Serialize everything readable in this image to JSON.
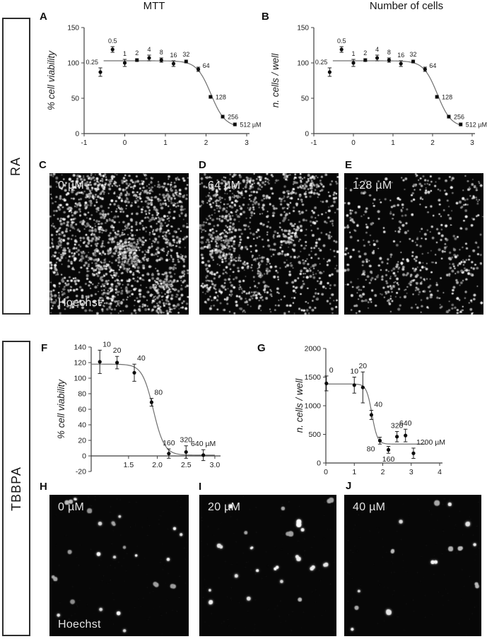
{
  "column_titles": [
    {
      "text": "MTT"
    },
    {
      "text": "Number of cells"
    }
  ],
  "group_labels": [
    {
      "text": "RA"
    },
    {
      "text": "TBBPA"
    }
  ],
  "panel_letters": [
    "A",
    "B",
    "C",
    "D",
    "E",
    "F",
    "G",
    "H",
    "I",
    "J"
  ],
  "colors": {
    "background": "#ffffff",
    "axis": "#3f3f3f",
    "curve": "#6f6f6f",
    "point": "#0d0d0d",
    "text": "#1b1b1b",
    "micro_background": "#070707",
    "micro_label": "#e4e4e4"
  },
  "chart_data": [
    {
      "panel": "A",
      "type": "scatter",
      "column_title": "MTT",
      "xlabel": "",
      "ylabel": "% cell viability",
      "xlim": [
        -1,
        3
      ],
      "ylim": [
        0,
        150
      ],
      "x_axis_at_y": 0,
      "grid": false,
      "xticks": [
        {
          "v": -1,
          "label": "-1"
        },
        {
          "v": 0,
          "label": "0"
        },
        {
          "v": 1,
          "label": "1"
        },
        {
          "v": 2,
          "label": "2"
        },
        {
          "v": 3,
          "label": "3"
        }
      ],
      "yticks": [
        {
          "v": 0,
          "label": "0"
        },
        {
          "v": 50,
          "label": "50"
        },
        {
          "v": 100,
          "label": "100"
        },
        {
          "v": 150,
          "label": "150"
        }
      ],
      "points": [
        {
          "label": "0.25",
          "x": -0.6,
          "y": 87,
          "err": 6,
          "label_pos": "above-left"
        },
        {
          "label": "0.5",
          "x": -0.3,
          "y": 119,
          "err": 4,
          "label_pos": "above"
        },
        {
          "label": "1",
          "x": 0.0,
          "y": 100,
          "err": 5,
          "label_pos": "above"
        },
        {
          "label": "2",
          "x": 0.3,
          "y": 104,
          "err": 2,
          "label_pos": "above"
        },
        {
          "label": "4",
          "x": 0.6,
          "y": 107,
          "err": 4,
          "label_pos": "above"
        },
        {
          "label": "8",
          "x": 0.9,
          "y": 104,
          "err": 3,
          "label_pos": "above"
        },
        {
          "label": "16",
          "x": 1.2,
          "y": 99,
          "err": 4,
          "label_pos": "above"
        },
        {
          "label": "32",
          "x": 1.51,
          "y": 102,
          "err": 2,
          "label_pos": "above"
        },
        {
          "label": "64",
          "x": 1.81,
          "y": 91,
          "err": 3,
          "label_pos": "right-above"
        },
        {
          "label": "128",
          "x": 2.11,
          "y": 52,
          "err": 2,
          "label_pos": "right"
        },
        {
          "label": "256",
          "x": 2.41,
          "y": 24,
          "err": 2,
          "label_pos": "right"
        },
        {
          "label": "512 µM",
          "x": 2.71,
          "y": 13,
          "err": 2,
          "label_pos": "right"
        }
      ],
      "fit": {
        "top": 103,
        "bottom": 9,
        "logec50": 2.12,
        "hill": 2.5,
        "x_start": -0.52,
        "x_end": 2.71
      }
    },
    {
      "panel": "B",
      "type": "scatter",
      "column_title": "Number of cells",
      "xlabel": "",
      "ylabel": "n. cells / well",
      "xlim": [
        -1,
        3
      ],
      "ylim": [
        0,
        150
      ],
      "x_axis_at_y": 0,
      "grid": false,
      "xticks": [
        {
          "v": -1,
          "label": "-1"
        },
        {
          "v": 0,
          "label": "0"
        },
        {
          "v": 1,
          "label": "1"
        },
        {
          "v": 2,
          "label": "2"
        },
        {
          "v": 3,
          "label": "3"
        }
      ],
      "yticks": [
        {
          "v": 0,
          "label": "0"
        },
        {
          "v": 50,
          "label": "50"
        },
        {
          "v": 100,
          "label": "100"
        },
        {
          "v": 150,
          "label": "150"
        }
      ],
      "points": [
        {
          "label": "0.25",
          "x": -0.6,
          "y": 87,
          "err": 6,
          "label_pos": "above-left"
        },
        {
          "label": "0.5",
          "x": -0.3,
          "y": 119,
          "err": 4,
          "label_pos": "above"
        },
        {
          "label": "1",
          "x": 0.0,
          "y": 100,
          "err": 5,
          "label_pos": "above"
        },
        {
          "label": "2",
          "x": 0.3,
          "y": 104,
          "err": 2,
          "label_pos": "above"
        },
        {
          "label": "4",
          "x": 0.6,
          "y": 107,
          "err": 4,
          "label_pos": "above"
        },
        {
          "label": "8",
          "x": 0.9,
          "y": 104,
          "err": 3,
          "label_pos": "above"
        },
        {
          "label": "16",
          "x": 1.2,
          "y": 99,
          "err": 4,
          "label_pos": "above"
        },
        {
          "label": "32",
          "x": 1.51,
          "y": 102,
          "err": 2,
          "label_pos": "above"
        },
        {
          "label": "64",
          "x": 1.81,
          "y": 91,
          "err": 3,
          "label_pos": "right-above"
        },
        {
          "label": "128",
          "x": 2.11,
          "y": 52,
          "err": 2,
          "label_pos": "right"
        },
        {
          "label": "256",
          "x": 2.41,
          "y": 24,
          "err": 2,
          "label_pos": "right"
        },
        {
          "label": "512 µM",
          "x": 2.71,
          "y": 13,
          "err": 2,
          "label_pos": "right"
        }
      ],
      "fit": {
        "top": 103,
        "bottom": 9,
        "logec50": 2.12,
        "hill": 2.5,
        "x_start": -0.52,
        "x_end": 2.71
      }
    },
    {
      "panel": "F",
      "type": "scatter",
      "xlabel": "",
      "ylabel": "% cell viability",
      "xlim": [
        0.85,
        3.05
      ],
      "ylim": [
        -20,
        140
      ],
      "x_axis_at_y": 0,
      "grid": false,
      "xticks": [
        {
          "v": 1.5,
          "label": "1.5"
        },
        {
          "v": 2.0,
          "label": "2.0"
        },
        {
          "v": 2.5,
          "label": "2.5"
        },
        {
          "v": 3.0,
          "label": "3.0"
        }
      ],
      "yticks": [
        {
          "v": -20,
          "label": "-20"
        },
        {
          "v": 0,
          "label": "0"
        },
        {
          "v": 20,
          "label": "20"
        },
        {
          "v": 40,
          "label": "40"
        },
        {
          "v": 60,
          "label": "60"
        },
        {
          "v": 80,
          "label": "80"
        },
        {
          "v": 100,
          "label": "100"
        },
        {
          "v": 120,
          "label": "120"
        },
        {
          "v": 140,
          "label": "140"
        }
      ],
      "points": [
        {
          "label": "10",
          "x": 1.0,
          "y": 121,
          "err": 15,
          "label_pos": "above-right"
        },
        {
          "label": "20",
          "x": 1.3,
          "y": 120,
          "err": 8,
          "label_pos": "above"
        },
        {
          "label": "40",
          "x": 1.6,
          "y": 107,
          "err": 11,
          "label_pos": "above-right"
        },
        {
          "label": "80",
          "x": 1.9,
          "y": 69,
          "err": 5,
          "label_pos": "above-right"
        },
        {
          "label": "160",
          "x": 2.2,
          "y": 3,
          "err": 6,
          "label_pos": "above"
        },
        {
          "label": "320",
          "x": 2.5,
          "y": 5,
          "err": 8,
          "label_pos": "above"
        },
        {
          "label": "640 µM",
          "x": 2.8,
          "y": 1,
          "err": 7,
          "label_pos": "above"
        }
      ],
      "fit": {
        "top": 118,
        "bottom": 1,
        "logec50": 1.93,
        "hill": 4.5,
        "x_start": 0.85,
        "x_end": 3.0
      }
    },
    {
      "panel": "G",
      "type": "scatter",
      "xlabel": "",
      "ylabel": "n. cells / well",
      "xlim": [
        0,
        4
      ],
      "ylim": [
        0,
        2000
      ],
      "x_axis_at_y": 0,
      "grid": false,
      "xticks": [
        {
          "v": 0,
          "label": "0"
        },
        {
          "v": 1,
          "label": "1"
        },
        {
          "v": 2,
          "label": "2"
        },
        {
          "v": 3,
          "label": "3"
        },
        {
          "v": 4,
          "label": "4"
        }
      ],
      "yticks": [
        {
          "v": 0,
          "label": "0"
        },
        {
          "v": 500,
          "label": "500"
        },
        {
          "v": 1000,
          "label": "1000"
        },
        {
          "v": 1500,
          "label": "1500"
        },
        {
          "v": 2000,
          "label": "2000"
        }
      ],
      "points": [
        {
          "label": "0",
          "x": 0.02,
          "y": 1390,
          "err": 130,
          "label_pos": "above-right"
        },
        {
          "label": "10",
          "x": 1.0,
          "y": 1360,
          "err": 140,
          "label_pos": "above"
        },
        {
          "label": "20",
          "x": 1.3,
          "y": 1320,
          "err": 270,
          "label_pos": "above"
        },
        {
          "label": "40",
          "x": 1.6,
          "y": 840,
          "err": 80,
          "label_pos": "above-right"
        },
        {
          "label": "80",
          "x": 1.9,
          "y": 390,
          "err": 60,
          "label_pos": "below-left"
        },
        {
          "label": "160",
          "x": 2.2,
          "y": 230,
          "err": 60,
          "label_pos": "below"
        },
        {
          "label": "320",
          "x": 2.5,
          "y": 460,
          "err": 90,
          "label_pos": "above"
        },
        {
          "label": "640",
          "x": 2.8,
          "y": 480,
          "err": 110,
          "label_pos": "above"
        },
        {
          "label": "1200 µM",
          "x": 3.08,
          "y": 170,
          "err": 90,
          "label_pos": "above-right"
        }
      ],
      "fit": {
        "top": 1380,
        "bottom": 330,
        "logec50": 1.62,
        "hill": 4.5,
        "x_start": 0.0,
        "x_end": 3.5
      }
    }
  ],
  "micrographs": [
    {
      "panel": "C",
      "group": "RA",
      "conc_label": "0 µM",
      "stain_label": "Hoechst",
      "style": "dense-small",
      "cell_count": 1900
    },
    {
      "panel": "D",
      "group": "RA",
      "conc_label": "64 µM",
      "style": "dense-small",
      "cell_count": 1300
    },
    {
      "panel": "E",
      "group": "RA",
      "conc_label": "128 µM",
      "style": "dense-small",
      "cell_count": 600
    },
    {
      "panel": "H",
      "group": "TBBPA",
      "conc_label": "0 µM",
      "stain_label": "Hoechst",
      "style": "sparse-large",
      "cell_count": 23
    },
    {
      "panel": "I",
      "group": "TBBPA",
      "conc_label": "20 µM",
      "style": "sparse-large",
      "cell_count": 20
    },
    {
      "panel": "J",
      "group": "TBBPA",
      "conc_label": "40 µM",
      "style": "sparse-large",
      "cell_count": 14
    }
  ]
}
